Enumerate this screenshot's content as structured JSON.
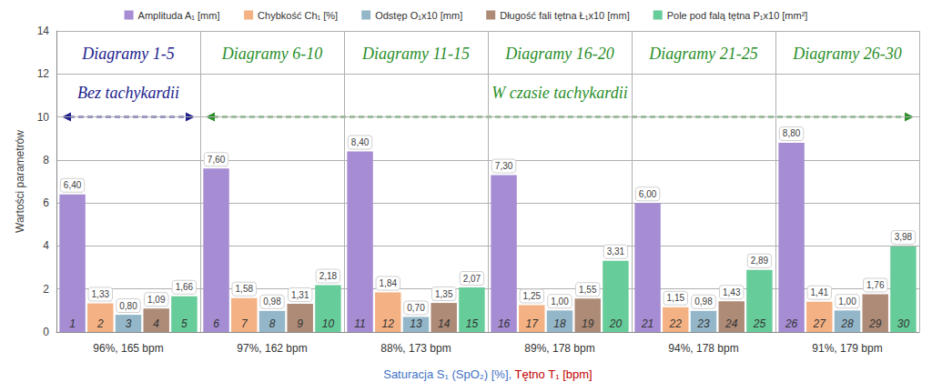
{
  "chart_data": {
    "type": "bar",
    "categories": [
      "96%, 165 bpm",
      "97%, 162 bpm",
      "88%, 173 bpm",
      "89%, 178 bpm",
      "94%, 178 bpm",
      "91%, 179 bpm"
    ],
    "series": [
      {
        "name": "Amplituda A₁ [mm]",
        "color": "#a58cd3",
        "values": [
          6.4,
          7.6,
          8.4,
          7.3,
          6.0,
          8.8
        ],
        "value_labels": [
          "6,40",
          "7,60",
          "8,40",
          "7,30",
          "6,00",
          "8,80"
        ],
        "bar_numbers": [
          1,
          6,
          11,
          16,
          21,
          26
        ]
      },
      {
        "name": "Chybkość Ch₁ [%]",
        "color": "#f4b183",
        "values": [
          1.33,
          1.58,
          1.84,
          1.25,
          1.15,
          1.41
        ],
        "value_labels": [
          "1,33",
          "1,58",
          "1,84",
          "1,25",
          "1,15",
          "1,41"
        ],
        "bar_numbers": [
          2,
          7,
          12,
          17,
          22,
          27
        ]
      },
      {
        "name": "Odstęp O₁x10 [mm]",
        "color": "#93b7c9",
        "values": [
          0.8,
          0.98,
          0.7,
          1.0,
          0.98,
          1.0
        ],
        "value_labels": [
          "0,80",
          "0,98",
          "0,70",
          "1,00",
          "0,98",
          "1,00"
        ],
        "bar_numbers": [
          3,
          8,
          13,
          18,
          23,
          28
        ]
      },
      {
        "name": "Długość fali tętna Ł₁x10 [mm]",
        "color": "#ad8b77",
        "values": [
          1.09,
          1.31,
          1.35,
          1.55,
          1.43,
          1.76
        ],
        "value_labels": [
          "1,09",
          "1,31",
          "1,35",
          "1,55",
          "1,43",
          "1,76"
        ],
        "bar_numbers": [
          4,
          9,
          14,
          19,
          24,
          29
        ]
      },
      {
        "name": "Pole pod falą tętna P₁x10 [mm²]",
        "color": "#66cc99",
        "values": [
          1.66,
          2.18,
          2.07,
          3.31,
          2.89,
          3.98
        ],
        "value_labels": [
          "1,66",
          "2,18",
          "2,07",
          "3,31",
          "2,89",
          "3,98"
        ],
        "bar_numbers": [
          5,
          10,
          15,
          20,
          25,
          30
        ]
      }
    ],
    "ylim": [
      0,
      14
    ],
    "yticks": [
      0,
      2,
      4,
      6,
      8,
      10,
      12,
      14
    ],
    "y_label": "Wartości parametrów",
    "x_label": [
      {
        "text": "Saturacja S₁ (SpO₂) [%],",
        "color": "#4472c4"
      },
      {
        "text": "Tętno T₁ [bpm]",
        "color": "#c00000"
      }
    ],
    "annotations": {
      "sections": [
        {
          "text": "Diagramy 1-5",
          "category": "96%, 165 bpm",
          "color": "#1c1c8c"
        },
        {
          "text": "Diagramy 6-10",
          "category": "97%, 162 bpm",
          "color": "#2a8f2a"
        },
        {
          "text": "Diagramy 11-15",
          "category": "88%, 173 bpm",
          "color": "#2a8f2a"
        },
        {
          "text": "Diagramy 16-20",
          "category": "89%, 178 bpm",
          "color": "#2a8f2a"
        },
        {
          "text": "Diagramy 21-25",
          "category": "94%, 178 bpm",
          "color": "#2a8f2a"
        },
        {
          "text": "Diagramy 26-30",
          "category": "91%, 179 bpm",
          "color": "#2a8f2a"
        }
      ],
      "spans": [
        {
          "text": "Bez tachykardii",
          "from": "96%, 165 bpm",
          "to": "96%, 165 bpm",
          "color": "#1c1c8c"
        },
        {
          "text": "W czasie tachykardii",
          "from": "97%, 162 bpm",
          "to": "91%, 179 bpm",
          "color": "#2a8f2a"
        }
      ]
    },
    "legend": "top",
    "grid": true,
    "data_labels": true
  }
}
